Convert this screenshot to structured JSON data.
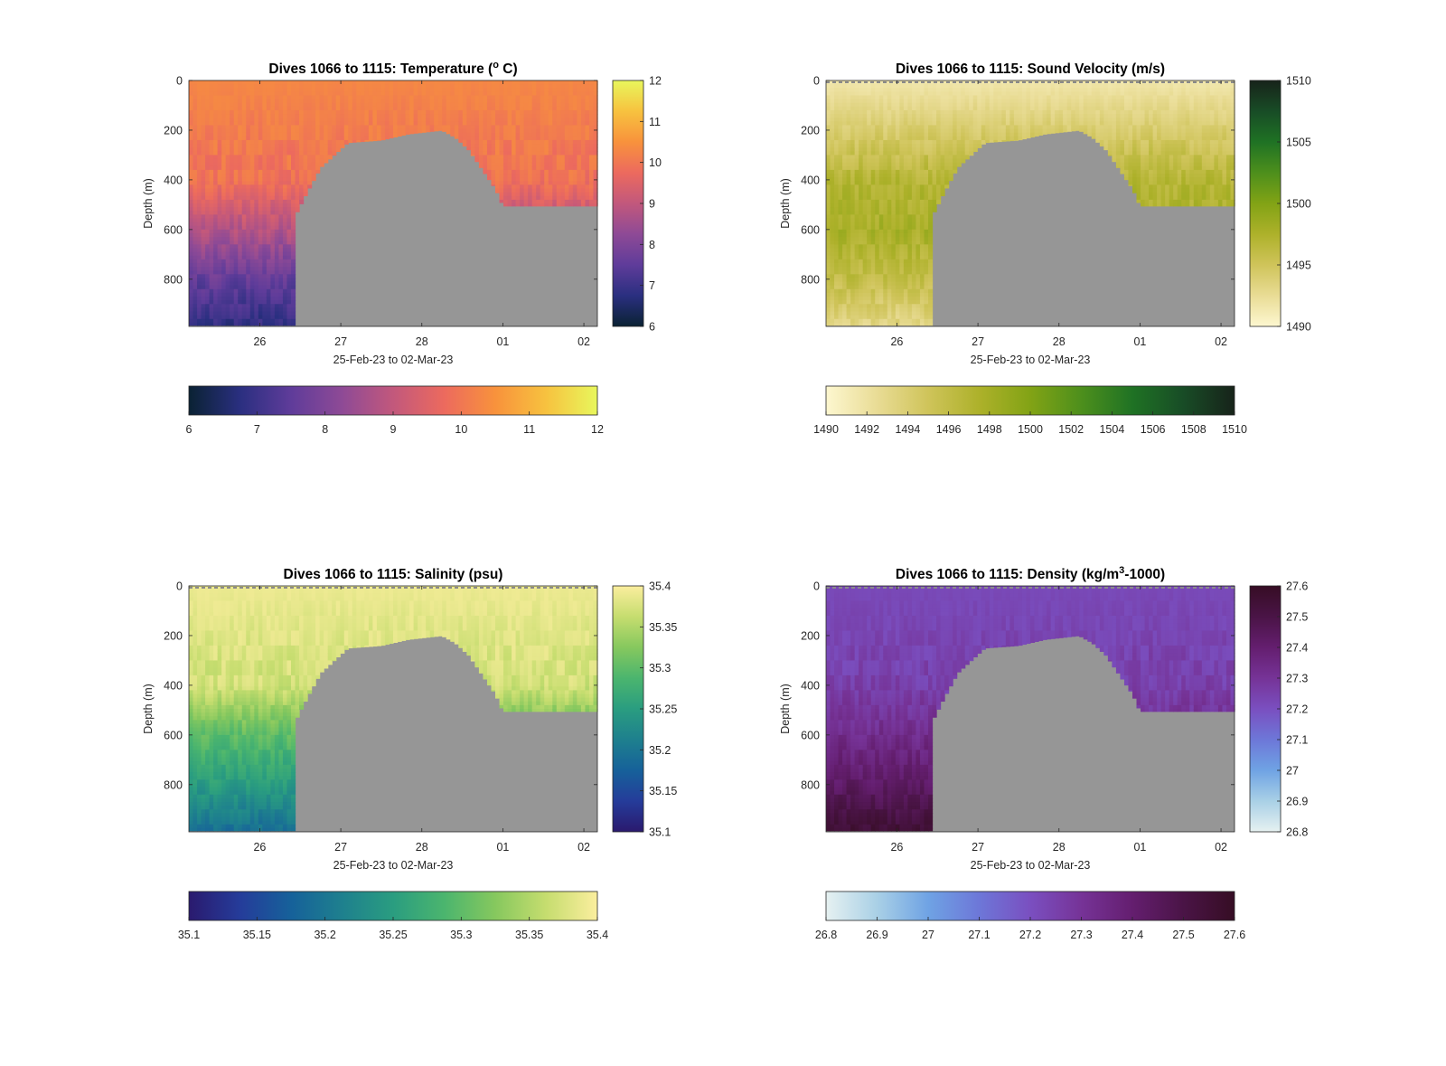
{
  "page": {
    "background": "#ffffff"
  },
  "chart_data": [
    {
      "type": "heatmap",
      "title_main": "Dives 1066 to 1115: Temperature (",
      "title_sup": "o",
      "title_tail": " C)",
      "xlabel": "25-Feb-23 to 02-Mar-23",
      "ylabel": "Depth (m)",
      "x_unit": "days",
      "xlim": [
        "2023-02-25T03:00",
        "2023-03-02T04:00"
      ],
      "x_ticks": [
        {
          "date": "2023-02-26",
          "label": "26"
        },
        {
          "date": "2023-02-27",
          "label": "27"
        },
        {
          "date": "2023-02-28",
          "label": "28"
        },
        {
          "date": "2023-03-01",
          "label": "01"
        },
        {
          "date": "2023-03-02",
          "label": "02"
        }
      ],
      "ylim": [
        0,
        990
      ],
      "y_reversed": true,
      "y_ticks": [
        0,
        200,
        400,
        600,
        800
      ],
      "clim": [
        6,
        12
      ],
      "colormap": "thermal",
      "colormap_stops": [
        "#0a2233",
        "#2a2f80",
        "#5f3c9a",
        "#8e4a96",
        "#c2587c",
        "#ec6a5e",
        "#f8923c",
        "#f7c23f",
        "#e8f75c"
      ],
      "vertical_colorbar_ticks": [
        6,
        7,
        8,
        9,
        10,
        11,
        12
      ],
      "horizontal_colorbar_ticks": [
        6,
        7,
        8,
        9,
        10,
        11,
        12
      ],
      "no_data_color": "#969696",
      "surface_dashes": false,
      "value_profile": {
        "surface": 10.3,
        "at_400": 9.9,
        "at_600": 8.8,
        "at_800": 7.6,
        "at_990": 6.8
      },
      "dive_max_depth_profile": [
        {
          "date": "2023-02-25T03:00",
          "depth_m": 985
        },
        {
          "date": "2023-02-26T10:00",
          "depth_m": 985
        },
        {
          "date": "2023-02-26T11:00",
          "depth_m": 530
        },
        {
          "date": "2023-02-26T14:00",
          "depth_m": 450
        },
        {
          "date": "2023-02-26T16:00",
          "depth_m": 400
        },
        {
          "date": "2023-02-26T18:00",
          "depth_m": 350
        },
        {
          "date": "2023-02-26T22:00",
          "depth_m": 300
        },
        {
          "date": "2023-02-27T02:00",
          "depth_m": 250
        },
        {
          "date": "2023-02-27T12:00",
          "depth_m": 240
        },
        {
          "date": "2023-02-27T20:00",
          "depth_m": 215
        },
        {
          "date": "2023-02-28T06:00",
          "depth_m": 200
        },
        {
          "date": "2023-02-28T10:00",
          "depth_m": 230
        },
        {
          "date": "2023-02-28T14:00",
          "depth_m": 280
        },
        {
          "date": "2023-02-28T18:00",
          "depth_m": 360
        },
        {
          "date": "2023-02-28T22:00",
          "depth_m": 440
        },
        {
          "date": "2023-03-01T00:00",
          "depth_m": 505
        },
        {
          "date": "2023-03-02T04:00",
          "depth_m": 505
        }
      ]
    },
    {
      "type": "heatmap",
      "title_main": "Dives 1066 to 1115: Sound Velocity (m/s)",
      "title_sup": "",
      "title_tail": "",
      "xlabel": "25-Feb-23 to 02-Mar-23",
      "ylabel": "Depth (m)",
      "x_unit": "days",
      "xlim": [
        "2023-02-25T03:00",
        "2023-03-02T04:00"
      ],
      "x_ticks": [
        {
          "date": "2023-02-26",
          "label": "26"
        },
        {
          "date": "2023-02-27",
          "label": "27"
        },
        {
          "date": "2023-02-28",
          "label": "28"
        },
        {
          "date": "2023-03-01",
          "label": "01"
        },
        {
          "date": "2023-03-02",
          "label": "02"
        }
      ],
      "ylim": [
        0,
        990
      ],
      "y_reversed": true,
      "y_ticks": [
        0,
        200,
        400,
        600,
        800
      ],
      "clim": [
        1490,
        1510
      ],
      "colormap": "speed",
      "colormap_stops": [
        "#fdf7d0",
        "#e9dc95",
        "#cfc45a",
        "#adb12a",
        "#82a315",
        "#4d8f1c",
        "#1f7224",
        "#184c26",
        "#17231a"
      ],
      "vertical_colorbar_ticks": [
        1490,
        1495,
        1500,
        1505,
        1510
      ],
      "horizontal_colorbar_ticks": [
        1490,
        1492,
        1494,
        1496,
        1498,
        1500,
        1502,
        1504,
        1506,
        1508,
        1510
      ],
      "no_data_color": "#969696",
      "surface_dashes": true,
      "value_profile": {
        "surface": 1491.5,
        "at_400": 1496.8,
        "at_600": 1497.8,
        "at_800": 1496.0,
        "at_990": 1493.0
      },
      "dive_max_depth_profile": [
        {
          "date": "2023-02-25T03:00",
          "depth_m": 985
        },
        {
          "date": "2023-02-26T10:00",
          "depth_m": 985
        },
        {
          "date": "2023-02-26T11:00",
          "depth_m": 530
        },
        {
          "date": "2023-02-26T14:00",
          "depth_m": 450
        },
        {
          "date": "2023-02-26T16:00",
          "depth_m": 400
        },
        {
          "date": "2023-02-26T18:00",
          "depth_m": 350
        },
        {
          "date": "2023-02-26T22:00",
          "depth_m": 300
        },
        {
          "date": "2023-02-27T02:00",
          "depth_m": 250
        },
        {
          "date": "2023-02-27T12:00",
          "depth_m": 240
        },
        {
          "date": "2023-02-27T20:00",
          "depth_m": 215
        },
        {
          "date": "2023-02-28T06:00",
          "depth_m": 200
        },
        {
          "date": "2023-02-28T10:00",
          "depth_m": 230
        },
        {
          "date": "2023-02-28T14:00",
          "depth_m": 280
        },
        {
          "date": "2023-02-28T18:00",
          "depth_m": 360
        },
        {
          "date": "2023-02-28T22:00",
          "depth_m": 440
        },
        {
          "date": "2023-03-01T00:00",
          "depth_m": 505
        },
        {
          "date": "2023-03-02T04:00",
          "depth_m": 505
        }
      ]
    },
    {
      "type": "heatmap",
      "title_main": "Dives 1066 to 1115: Salinity (psu)",
      "title_sup": "",
      "title_tail": "",
      "xlabel": "25-Feb-23 to 02-Mar-23",
      "ylabel": "Depth (m)",
      "x_unit": "days",
      "xlim": [
        "2023-02-25T03:00",
        "2023-03-02T04:00"
      ],
      "x_ticks": [
        {
          "date": "2023-02-26",
          "label": "26"
        },
        {
          "date": "2023-02-27",
          "label": "27"
        },
        {
          "date": "2023-02-28",
          "label": "28"
        },
        {
          "date": "2023-03-01",
          "label": "01"
        },
        {
          "date": "2023-03-02",
          "label": "02"
        }
      ],
      "ylim": [
        0,
        990
      ],
      "y_reversed": true,
      "y_ticks": [
        0,
        200,
        400,
        600,
        800
      ],
      "clim": [
        35.1,
        35.4
      ],
      "colormap": "haline",
      "colormap_stops": [
        "#2a1a6e",
        "#253c9a",
        "#16619a",
        "#1e808e",
        "#2a9d80",
        "#4bb56e",
        "#86c85e",
        "#c6dd6f",
        "#fbee9e"
      ],
      "vertical_colorbar_ticks": [
        35.1,
        35.15,
        35.2,
        35.25,
        35.3,
        35.35,
        35.4
      ],
      "horizontal_colorbar_ticks": [
        35.1,
        35.15,
        35.2,
        35.25,
        35.3,
        35.35,
        35.4
      ],
      "no_data_color": "#969696",
      "surface_dashes": true,
      "value_profile": {
        "surface": 35.39,
        "at_400": 35.37,
        "at_600": 35.3,
        "at_800": 35.25,
        "at_990": 35.19
      },
      "dive_max_depth_profile": [
        {
          "date": "2023-02-25T03:00",
          "depth_m": 985
        },
        {
          "date": "2023-02-26T10:00",
          "depth_m": 985
        },
        {
          "date": "2023-02-26T11:00",
          "depth_m": 530
        },
        {
          "date": "2023-02-26T14:00",
          "depth_m": 450
        },
        {
          "date": "2023-02-26T16:00",
          "depth_m": 400
        },
        {
          "date": "2023-02-26T18:00",
          "depth_m": 350
        },
        {
          "date": "2023-02-26T22:00",
          "depth_m": 300
        },
        {
          "date": "2023-02-27T02:00",
          "depth_m": 250
        },
        {
          "date": "2023-02-27T12:00",
          "depth_m": 240
        },
        {
          "date": "2023-02-27T20:00",
          "depth_m": 215
        },
        {
          "date": "2023-02-28T06:00",
          "depth_m": 200
        },
        {
          "date": "2023-02-28T10:00",
          "depth_m": 230
        },
        {
          "date": "2023-02-28T14:00",
          "depth_m": 280
        },
        {
          "date": "2023-02-28T18:00",
          "depth_m": 360
        },
        {
          "date": "2023-02-28T22:00",
          "depth_m": 440
        },
        {
          "date": "2023-03-01T00:00",
          "depth_m": 505
        },
        {
          "date": "2023-03-02T04:00",
          "depth_m": 505
        }
      ]
    },
    {
      "type": "heatmap",
      "title_main": "Dives 1066 to 1115: Density (kg/m",
      "title_sup": "3",
      "title_tail": "-1000)",
      "xlabel": "25-Feb-23 to 02-Mar-23",
      "ylabel": "Depth (m)",
      "x_unit": "days",
      "xlim": [
        "2023-02-25T03:00",
        "2023-03-02T04:00"
      ],
      "x_ticks": [
        {
          "date": "2023-02-26",
          "label": "26"
        },
        {
          "date": "2023-02-27",
          "label": "27"
        },
        {
          "date": "2023-02-28",
          "label": "28"
        },
        {
          "date": "2023-03-01",
          "label": "01"
        },
        {
          "date": "2023-03-02",
          "label": "02"
        }
      ],
      "ylim": [
        0,
        990
      ],
      "y_reversed": true,
      "y_ticks": [
        0,
        200,
        400,
        600,
        800
      ],
      "clim": [
        26.8,
        27.6
      ],
      "colormap": "dense",
      "colormap_stops": [
        "#e6f1f1",
        "#a9d0e6",
        "#6fa3e4",
        "#6d77d8",
        "#7a4fc0",
        "#763397",
        "#641e6f",
        "#4a1446",
        "#360d24"
      ],
      "vertical_colorbar_ticks": [
        26.8,
        26.9,
        27,
        27.1,
        27.2,
        27.3,
        27.4,
        27.5,
        27.6
      ],
      "horizontal_colorbar_ticks": [
        26.8,
        26.9,
        27,
        27.1,
        27.2,
        27.3,
        27.4,
        27.5,
        27.6
      ],
      "no_data_color": "#969696",
      "surface_dashes": true,
      "value_profile": {
        "surface": 27.22,
        "at_400": 27.25,
        "at_600": 27.33,
        "at_800": 27.43,
        "at_990": 27.55
      },
      "dive_max_depth_profile": [
        {
          "date": "2023-02-25T03:00",
          "depth_m": 985
        },
        {
          "date": "2023-02-26T10:00",
          "depth_m": 985
        },
        {
          "date": "2023-02-26T11:00",
          "depth_m": 530
        },
        {
          "date": "2023-02-26T14:00",
          "depth_m": 450
        },
        {
          "date": "2023-02-26T16:00",
          "depth_m": 400
        },
        {
          "date": "2023-02-26T18:00",
          "depth_m": 350
        },
        {
          "date": "2023-02-26T22:00",
          "depth_m": 300
        },
        {
          "date": "2023-02-27T02:00",
          "depth_m": 250
        },
        {
          "date": "2023-02-27T12:00",
          "depth_m": 240
        },
        {
          "date": "2023-02-27T20:00",
          "depth_m": 215
        },
        {
          "date": "2023-02-28T06:00",
          "depth_m": 200
        },
        {
          "date": "2023-02-28T10:00",
          "depth_m": 230
        },
        {
          "date": "2023-02-28T14:00",
          "depth_m": 280
        },
        {
          "date": "2023-02-28T18:00",
          "depth_m": 360
        },
        {
          "date": "2023-02-28T22:00",
          "depth_m": 440
        },
        {
          "date": "2023-03-01T00:00",
          "depth_m": 505
        },
        {
          "date": "2023-03-02T04:00",
          "depth_m": 505
        }
      ]
    }
  ]
}
